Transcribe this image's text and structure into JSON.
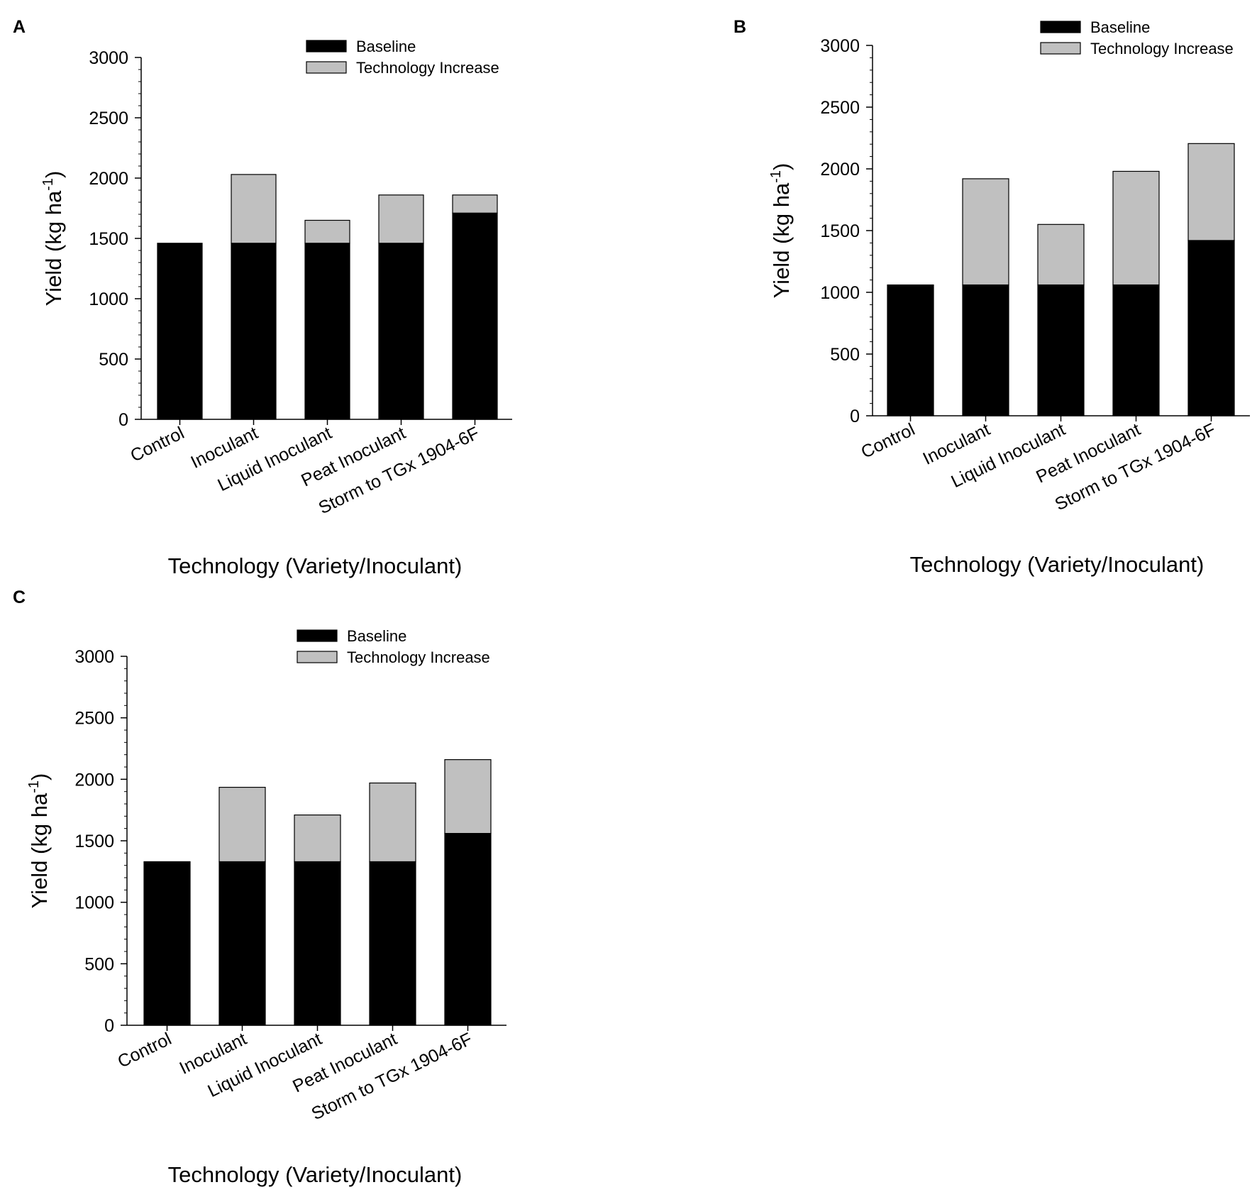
{
  "figure": {
    "panels": [
      "A",
      "B",
      "C"
    ]
  },
  "colors": {
    "baseline": "#000000",
    "increase": "#c0c0c0",
    "axis": "#000000"
  },
  "chart_data": [
    {
      "panel": "A",
      "type": "bar",
      "stacked": true,
      "categories": [
        "Control",
        "Inoculant",
        "Liquid Inoculant",
        "Peat Inoculant",
        "Storm to TGx 1904-6F"
      ],
      "series": [
        {
          "name": "Baseline",
          "values": [
            1460,
            1460,
            1460,
            1460,
            1710
          ]
        },
        {
          "name": "Technology Increase",
          "values": [
            0,
            570,
            190,
            400,
            150
          ]
        }
      ],
      "xlabel": "Technology (Variety/Inoculant)",
      "ylabel": "Yield (kg ha",
      "ylabel_sup": "-1",
      "ylabel_close": ")",
      "ylim": [
        0,
        3000
      ],
      "yticks": [
        0,
        500,
        1000,
        1500,
        2000,
        2500,
        3000
      ],
      "legend": [
        "Baseline",
        "Technology Increase"
      ],
      "legend_position": "top-right",
      "grid": false
    },
    {
      "panel": "B",
      "type": "bar",
      "stacked": true,
      "categories": [
        "Control",
        "Inoculant",
        "Liquid Inoculant",
        "Peat Inoculant",
        "Storm to TGx 1904-6F"
      ],
      "series": [
        {
          "name": "Baseline",
          "values": [
            1060,
            1060,
            1060,
            1060,
            1420
          ]
        },
        {
          "name": "Technology Increase",
          "values": [
            0,
            860,
            490,
            920,
            785
          ]
        }
      ],
      "xlabel": "Technology (Variety/Inoculant)",
      "ylabel": "Yield (kg ha",
      "ylabel_sup": "-1",
      "ylabel_close": ")",
      "ylim": [
        0,
        3000
      ],
      "yticks": [
        0,
        500,
        1000,
        1500,
        2000,
        2500,
        3000
      ],
      "legend": [
        "Baseline",
        "Technology Increase"
      ],
      "legend_position": "top-right",
      "grid": false
    },
    {
      "panel": "C",
      "type": "bar",
      "stacked": true,
      "categories": [
        "Control",
        "Inoculant",
        "Liquid Inoculant",
        "Peat Inoculant",
        "Storm to TGx 1904-6F"
      ],
      "series": [
        {
          "name": "Baseline",
          "values": [
            1330,
            1330,
            1330,
            1330,
            1560
          ]
        },
        {
          "name": "Technology Increase",
          "values": [
            0,
            605,
            380,
            640,
            600
          ]
        }
      ],
      "xlabel": "Technology (Variety/Inoculant)",
      "ylabel": "Yield (kg ha",
      "ylabel_sup": "-1",
      "ylabel_close": ")",
      "ylim": [
        0,
        3000
      ],
      "yticks": [
        0,
        500,
        1000,
        1500,
        2000,
        2500,
        3000
      ],
      "legend": [
        "Baseline",
        "Technology Increase"
      ],
      "legend_position": "top-right",
      "grid": false
    }
  ]
}
